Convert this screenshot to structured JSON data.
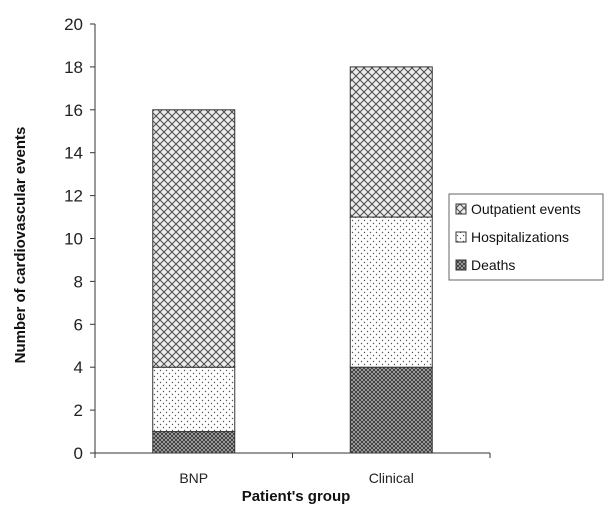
{
  "chart_data": {
    "type": "bar",
    "stacked": true,
    "categories": [
      "BNP",
      "Clinical"
    ],
    "series": [
      {
        "name": "Deaths",
        "values": [
          1,
          4
        ],
        "pattern": "dense-grid"
      },
      {
        "name": "Hospitalizations",
        "values": [
          3,
          7
        ],
        "pattern": "dots"
      },
      {
        "name": "Outpatient events",
        "values": [
          12,
          7
        ],
        "pattern": "crosshatch"
      }
    ],
    "xlabel": "Patient's group",
    "ylabel": "Number of cardiovascular events",
    "ylim": [
      0,
      20
    ],
    "yticks": [
      0,
      2,
      4,
      6,
      8,
      10,
      12,
      14,
      16,
      18,
      20
    ],
    "grid": false,
    "legend": {
      "position": "right",
      "order": [
        "Outpatient events",
        "Hospitalizations",
        "Deaths"
      ]
    },
    "colors": {
      "stroke": "#333333",
      "fill": "#ffffff"
    }
  }
}
